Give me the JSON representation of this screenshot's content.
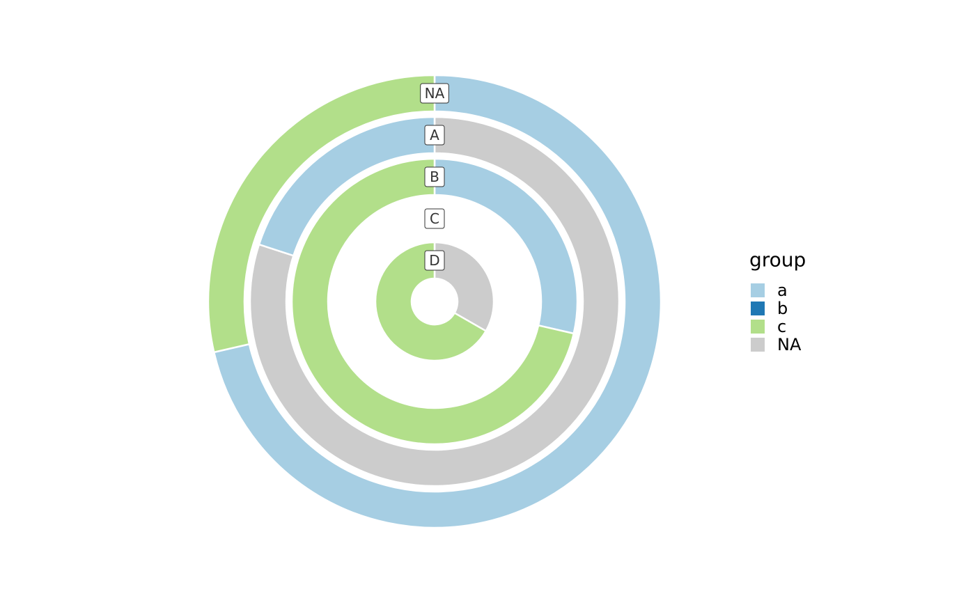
{
  "chart_data": {
    "type": "nested-donut",
    "legend": {
      "title": "group",
      "position": "right",
      "entries": [
        {
          "name": "a",
          "color": "#a6cee3"
        },
        {
          "name": "b",
          "color": "#1f78b4"
        },
        {
          "name": "c",
          "color": "#b2df8a"
        },
        {
          "name": "NA",
          "color": "#cccccc"
        }
      ]
    },
    "rings": [
      {
        "label": "NA",
        "segments": [
          {
            "group": "a",
            "value": 71.4
          },
          {
            "group": "c",
            "value": 28.6
          }
        ]
      },
      {
        "label": "A",
        "segments": [
          {
            "group": "NA",
            "value": 80
          },
          {
            "group": "a",
            "value": 20
          }
        ]
      },
      {
        "label": "B",
        "segments": [
          {
            "group": "a",
            "value": 28.6
          },
          {
            "group": "c",
            "value": 71.4
          }
        ]
      },
      {
        "label": "C",
        "segments": []
      },
      {
        "label": "D",
        "segments": [
          {
            "group": "NA",
            "value": 33.3
          },
          {
            "group": "c",
            "value": 66.7
          }
        ]
      }
    ]
  }
}
